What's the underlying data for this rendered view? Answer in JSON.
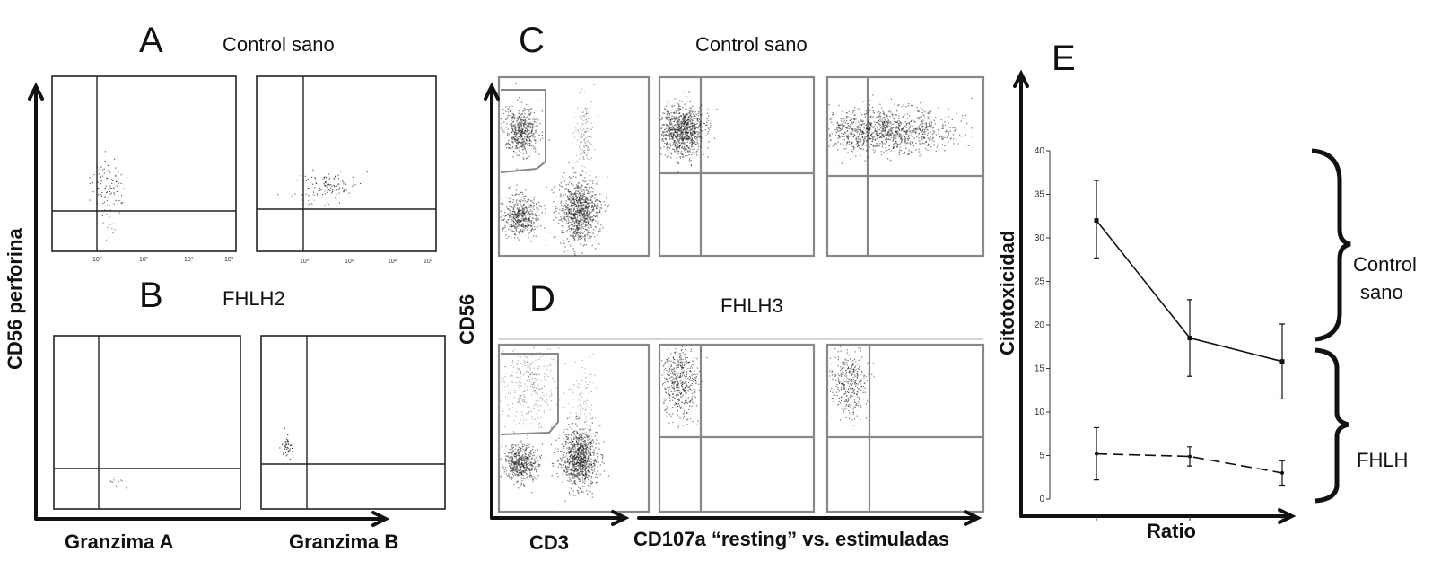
{
  "panels": {
    "A": {
      "letter": "A",
      "title": "Control sano"
    },
    "B": {
      "letter": "B",
      "title": "FHLH2"
    },
    "C": {
      "letter": "C",
      "title": "Control sano"
    },
    "D": {
      "letter": "D",
      "title": "FHLH3"
    },
    "E": {
      "letter": "E"
    }
  },
  "flow_axes": {
    "ab_ylabel": "CD56 perforina",
    "ab_xlabel_left": "Granzima A",
    "ab_xlabel_right": "Granzima B",
    "cd_ylabel": "CD56",
    "cd_xlabel_left": "CD3",
    "cd_xlabel_right": "CD107a “resting” vs. estimuladas",
    "log_ticks": [
      "10⁰",
      "10¹",
      "10²",
      "10³"
    ]
  },
  "bracket_labels": {
    "control_line1": "Control",
    "control_line2": "sano",
    "fhlh": "FHLH"
  },
  "chart_data": {
    "type": "line",
    "xlabel": "Ratio",
    "ylabel": "Citotoxicidad",
    "x": [
      1,
      2,
      3
    ],
    "ylim": [
      0,
      40
    ],
    "yticks": [
      "0",
      "5",
      "10",
      "15",
      "20",
      "25",
      "30",
      "35",
      "40"
    ],
    "grid": false,
    "series": [
      {
        "values": [
          32,
          18.5,
          15.8
        ],
        "err_low": [
          27.7,
          14.1,
          11.5
        ],
        "err_high": [
          36.6,
          22.9,
          20.1
        ],
        "style": "solid",
        "marker": "square"
      },
      {
        "values": [
          5.2,
          4.9,
          3.0
        ],
        "err_low": [
          2.2,
          3.8,
          1.6
        ],
        "err_high": [
          8.2,
          6.0,
          4.4
        ],
        "style": "dashed",
        "marker": "dot"
      }
    ]
  },
  "colors": {
    "ink": "#111111",
    "gate_gray": "#888888",
    "dots": "#1a1a1a"
  }
}
